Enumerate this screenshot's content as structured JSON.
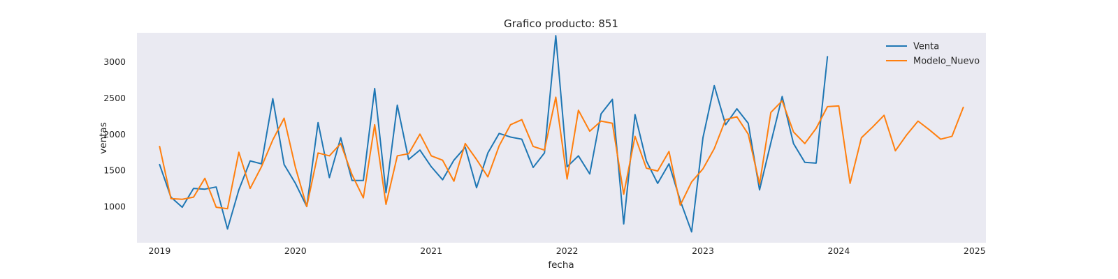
{
  "chart_data": {
    "type": "line",
    "title": "Grafico producto: 851",
    "xlabel": "fecha",
    "ylabel": "ventas",
    "x_ticks": [
      "2019",
      "2020",
      "2021",
      "2022",
      "2023",
      "2024",
      "2025"
    ],
    "y_ticks": [
      1000,
      1500,
      2000,
      2500,
      3000
    ],
    "xlim": [
      "2018-11",
      "2025-02"
    ],
    "ylim": [
      500,
      3400
    ],
    "grid": false,
    "legend": "top-right",
    "background": "#eaeaf2",
    "series": [
      {
        "name": "Venta",
        "color": "#1f77b4",
        "x": [
          "2019-01",
          "2019-02",
          "2019-03",
          "2019-04",
          "2019-05",
          "2019-06",
          "2019-07",
          "2019-08",
          "2019-09",
          "2019-10",
          "2019-11",
          "2019-12",
          "2020-01",
          "2020-02",
          "2020-03",
          "2020-04",
          "2020-05",
          "2020-06",
          "2020-07",
          "2020-08",
          "2020-09",
          "2020-10",
          "2020-11",
          "2020-12",
          "2021-01",
          "2021-02",
          "2021-03",
          "2021-04",
          "2021-05",
          "2021-06",
          "2021-07",
          "2021-08",
          "2021-09",
          "2021-10",
          "2021-11",
          "2021-12",
          "2022-01",
          "2022-02",
          "2022-03",
          "2022-04",
          "2022-05",
          "2022-06",
          "2022-07",
          "2022-08",
          "2022-09",
          "2022-10",
          "2022-11",
          "2022-12",
          "2023-01",
          "2023-02",
          "2023-03",
          "2023-04",
          "2023-05",
          "2023-06",
          "2023-07",
          "2023-08",
          "2023-09",
          "2023-10",
          "2023-11",
          "2023-12"
        ],
        "y": [
          1580,
          1130,
          990,
          1250,
          1240,
          1270,
          690,
          1230,
          1630,
          1590,
          2490,
          1580,
          1320,
          1000,
          2160,
          1400,
          1950,
          1360,
          1360,
          2630,
          1190,
          2400,
          1650,
          1780,
          1550,
          1370,
          1640,
          1820,
          1260,
          1740,
          2010,
          1960,
          1930,
          1540,
          1740,
          3360,
          1550,
          1700,
          1450,
          2280,
          2480,
          760,
          2270,
          1630,
          1320,
          1590,
          1080,
          650,
          1950,
          2670,
          2130,
          2350,
          2150,
          1230,
          1880,
          2520,
          1870,
          1610,
          1600,
          3070
        ]
      },
      {
        "name": "Modelo_Nuevo",
        "color": "#ff7f0e",
        "x": [
          "2019-01",
          "2019-02",
          "2019-03",
          "2019-04",
          "2019-05",
          "2019-06",
          "2019-07",
          "2019-08",
          "2019-09",
          "2019-10",
          "2019-11",
          "2019-12",
          "2020-01",
          "2020-02",
          "2020-03",
          "2020-04",
          "2020-05",
          "2020-06",
          "2020-07",
          "2020-08",
          "2020-09",
          "2020-10",
          "2020-11",
          "2020-12",
          "2021-01",
          "2021-02",
          "2021-03",
          "2021-04",
          "2021-05",
          "2021-06",
          "2021-07",
          "2021-08",
          "2021-09",
          "2021-10",
          "2021-11",
          "2021-12",
          "2022-01",
          "2022-02",
          "2022-03",
          "2022-04",
          "2022-05",
          "2022-06",
          "2022-07",
          "2022-08",
          "2022-09",
          "2022-10",
          "2022-11",
          "2022-12",
          "2023-01",
          "2023-02",
          "2023-03",
          "2023-04",
          "2023-05",
          "2023-06",
          "2023-07",
          "2023-08",
          "2023-09",
          "2023-10",
          "2023-11",
          "2023-12",
          "2024-01",
          "2024-02",
          "2024-03",
          "2024-04",
          "2024-05",
          "2024-06",
          "2024-07",
          "2024-08",
          "2024-09",
          "2024-10",
          "2024-11",
          "2024-12"
        ],
        "y": [
          1830,
          1110,
          1100,
          1130,
          1390,
          990,
          970,
          1750,
          1250,
          1550,
          1920,
          2220,
          1540,
          1000,
          1740,
          1700,
          1870,
          1440,
          1120,
          2130,
          1030,
          1700,
          1730,
          2000,
          1700,
          1640,
          1350,
          1870,
          1650,
          1410,
          1840,
          2130,
          2200,
          1830,
          1780,
          2510,
          1380,
          2330,
          2040,
          2180,
          2150,
          1170,
          1970,
          1530,
          1490,
          1760,
          1020,
          1340,
          1520,
          1800,
          2200,
          2240,
          2000,
          1310,
          2300,
          2460,
          2030,
          1870,
          2080,
          2380,
          2390,
          1320,
          1950,
          2100,
          2260,
          1770,
          1990,
          2180,
          2060,
          1930,
          1970,
          2370
        ]
      }
    ]
  }
}
